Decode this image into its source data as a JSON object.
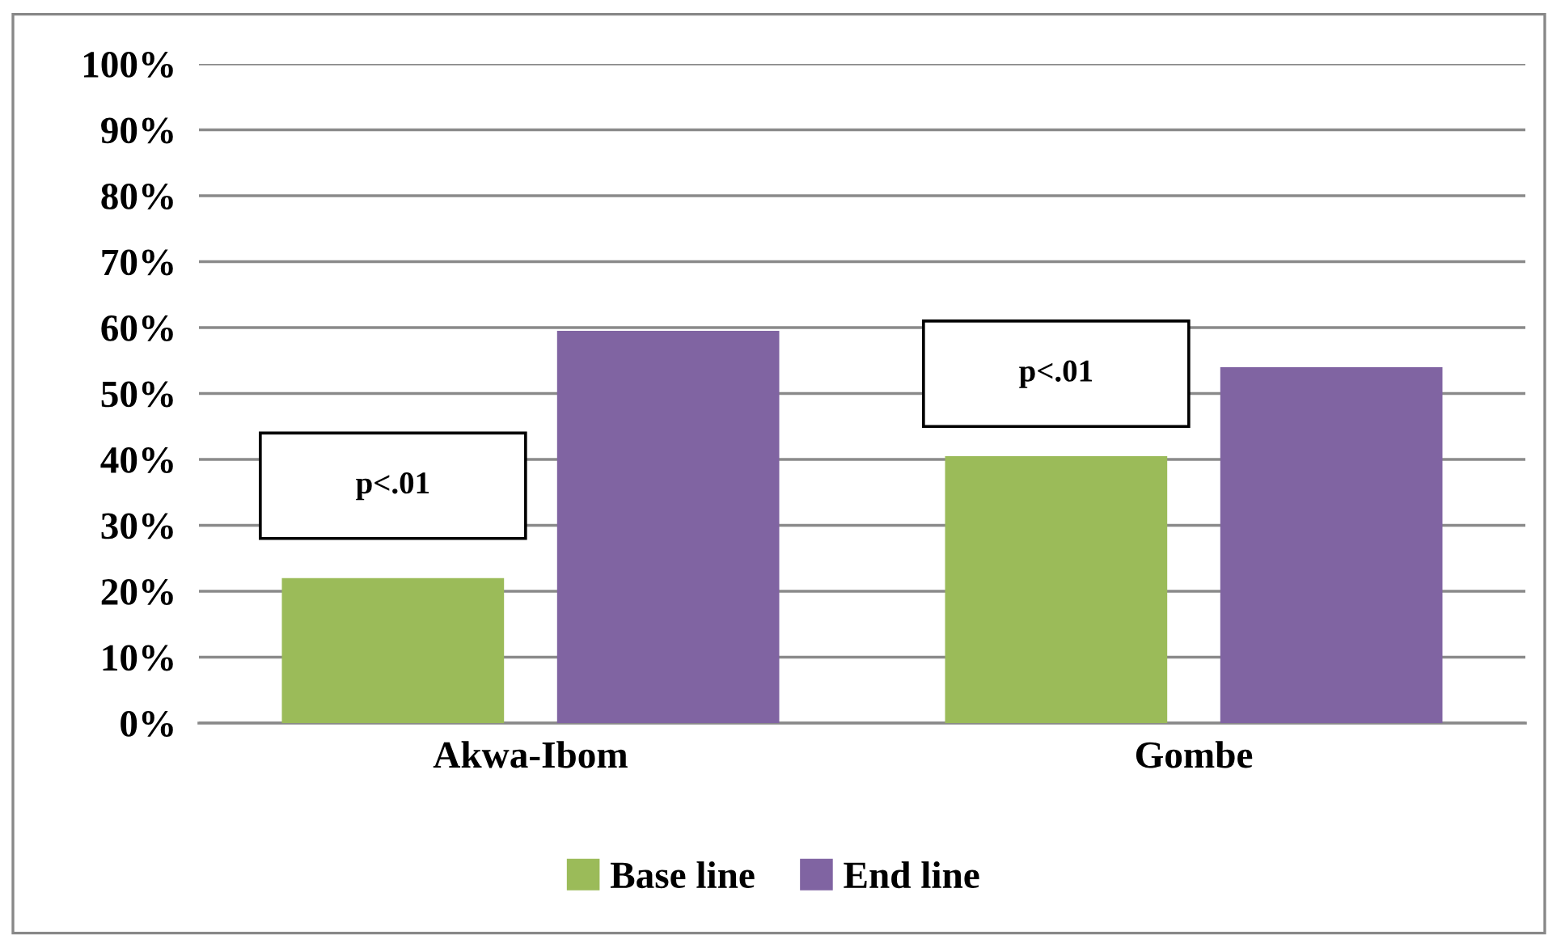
{
  "chart_data": {
    "type": "bar",
    "categories": [
      "Akwa-Ibom",
      "Gombe"
    ],
    "series": [
      {
        "name": "Base line",
        "color": "#9bbb59",
        "values": [
          22,
          40.5
        ]
      },
      {
        "name": "End line",
        "color": "#8064a2",
        "values": [
          59.5,
          54
        ]
      }
    ],
    "ylim": [
      0,
      100
    ],
    "yticks": [
      {
        "value": 0,
        "label": "0%"
      },
      {
        "value": 10,
        "label": "10%"
      },
      {
        "value": 20,
        "label": "20%"
      },
      {
        "value": 30,
        "label": "30%"
      },
      {
        "value": 40,
        "label": "40%"
      },
      {
        "value": 50,
        "label": "50%"
      },
      {
        "value": 60,
        "label": "60%"
      },
      {
        "value": 70,
        "label": "70%"
      },
      {
        "value": 80,
        "label": "80%"
      },
      {
        "value": 90,
        "label": "90%"
      },
      {
        "value": 100,
        "label": "100%"
      }
    ],
    "grid": "y",
    "legend": "bottom",
    "annotations": [
      "p<.01",
      "p<.01"
    ]
  }
}
